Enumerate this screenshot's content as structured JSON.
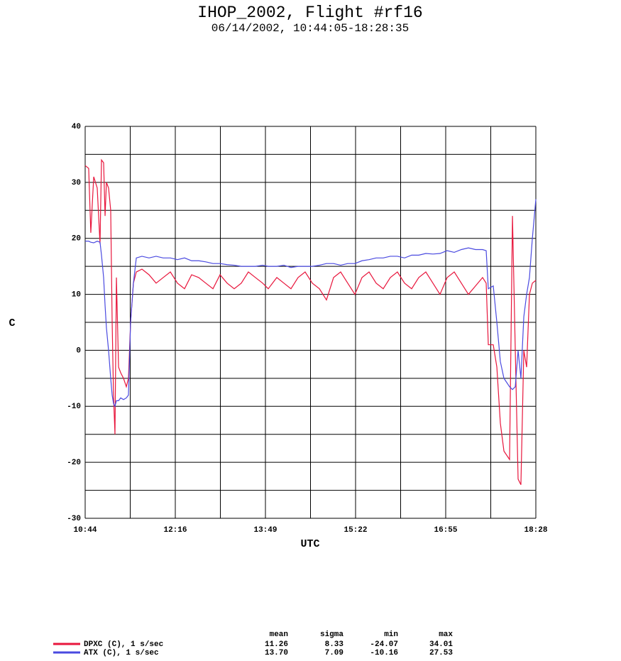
{
  "chart_data": {
    "type": "line",
    "title": "IHOP_2002, Flight #rf16",
    "subtitle": "06/14/2002, 10:44:05-18:28:35",
    "x_label": "UTC",
    "y_label": "C",
    "xlim": [
      644.083,
      1108.583
    ],
    "ylim": [
      -30,
      40
    ],
    "grid": true,
    "xticks": [
      {
        "value": 644.083,
        "label": "10:44"
      },
      {
        "value": 690.533,
        "label": null
      },
      {
        "value": 736.983,
        "label": "12:16"
      },
      {
        "value": 783.433,
        "label": null
      },
      {
        "value": 829.883,
        "label": "13:49"
      },
      {
        "value": 876.333,
        "label": null
      },
      {
        "value": 922.783,
        "label": "15:22"
      },
      {
        "value": 969.233,
        "label": null
      },
      {
        "value": 1015.683,
        "label": "16:55"
      },
      {
        "value": 1062.133,
        "label": null
      },
      {
        "value": 1108.583,
        "label": "18:28"
      }
    ],
    "yticks": [
      -30,
      {
        "value": -25,
        "label": null
      },
      -20,
      {
        "value": -15,
        "label": null
      },
      -10,
      {
        "value": -5,
        "label": null
      },
      0,
      {
        "value": 5,
        "label": null
      },
      10,
      {
        "value": 15,
        "label": null
      },
      20,
      {
        "value": 25,
        "label": null
      },
      30,
      {
        "value": 35,
        "label": null
      },
      40
    ],
    "x": [
      644.1,
      647.7,
      649.9,
      652.9,
      656.5,
      659.4,
      660.9,
      663.1,
      664.6,
      666.0,
      668.2,
      670.4,
      671.9,
      673.3,
      674.8,
      676.3,
      678.5,
      680.7,
      683.6,
      686.5,
      688.7,
      690.9,
      693.8,
      696.8,
      702.6,
      709.9,
      717.2,
      724.5,
      731.9,
      739.2,
      746.5,
      753.8,
      761.1,
      768.4,
      775.8,
      783.1,
      790.4,
      797.7,
      805.0,
      812.3,
      819.6,
      827.0,
      832.8,
      841.6,
      848.9,
      856.2,
      863.5,
      870.8,
      878.2,
      885.5,
      892.8,
      900.1,
      907.4,
      914.7,
      922.1,
      929.4,
      936.7,
      944.0,
      951.3,
      958.6,
      965.9,
      973.3,
      980.6,
      987.9,
      995.2,
      1002.5,
      1009.8,
      1017.2,
      1024.5,
      1031.8,
      1039.1,
      1046.4,
      1053.7,
      1057.4,
      1059.6,
      1064.7,
      1068.4,
      1072.0,
      1075.7,
      1081.5,
      1084.5,
      1087.4,
      1090.3,
      1093.2,
      1096.2,
      1099.1,
      1102.0,
      1105.0,
      1108.6
    ],
    "stats_columns": [
      "mean",
      "sigma",
      "min",
      "max"
    ],
    "series": [
      {
        "name": "DPXC (C), 1 s/sec",
        "color": "#e8163c",
        "stats": [
          "11.26",
          "8.33",
          "-24.07",
          "34.01"
        ],
        "values": [
          33,
          32.5,
          21,
          31,
          29,
          19,
          34,
          33.5,
          24,
          30,
          29,
          25,
          5,
          -8,
          -15,
          13,
          -3,
          -4,
          -5,
          -6.5,
          -5,
          5,
          12,
          14,
          14.5,
          13.5,
          12,
          13,
          14,
          12,
          11,
          13.5,
          13,
          12,
          11,
          13.5,
          12,
          11,
          12,
          14,
          13,
          12,
          11,
          13,
          12,
          11,
          13,
          14,
          12,
          11,
          9,
          13,
          14,
          12,
          10,
          13,
          14,
          12,
          11,
          13,
          14,
          12,
          11,
          13,
          14,
          12,
          10,
          13,
          14,
          12,
          10,
          11.5,
          13,
          12,
          1,
          1,
          -3,
          -13,
          -18,
          -19.5,
          24,
          0,
          -23,
          -24,
          0,
          -3,
          10,
          12,
          12.5
        ]
      },
      {
        "name": "ATX (C), 1 s/sec",
        "color": "#4a4ae0",
        "stats": [
          "13.70",
          "7.09",
          "-10.16",
          "27.53"
        ],
        "values": [
          19.5,
          19.5,
          19.3,
          19.2,
          19.5,
          19.3,
          17,
          13,
          8,
          4,
          0,
          -5,
          -8,
          -9.5,
          -10,
          -9,
          -9,
          -8.5,
          -8.8,
          -8.5,
          -8,
          5,
          12,
          16.5,
          16.8,
          16.5,
          16.8,
          16.5,
          16.5,
          16.2,
          16.5,
          16,
          16,
          15.8,
          15.5,
          15.5,
          15.3,
          15.2,
          15,
          15,
          15,
          15.2,
          15,
          15,
          15.2,
          14.8,
          15,
          15,
          15,
          15.2,
          15.5,
          15.5,
          15.2,
          15.5,
          15.5,
          16,
          16.2,
          16.5,
          16.5,
          16.8,
          16.8,
          16.5,
          17,
          17,
          17.3,
          17.2,
          17.3,
          17.8,
          17.5,
          18,
          18.3,
          18,
          18,
          17.8,
          11,
          11.5,
          5,
          -2,
          -5,
          -6.5,
          -7,
          -6.5,
          0,
          -5,
          6,
          10,
          13,
          20,
          27
        ]
      }
    ]
  }
}
